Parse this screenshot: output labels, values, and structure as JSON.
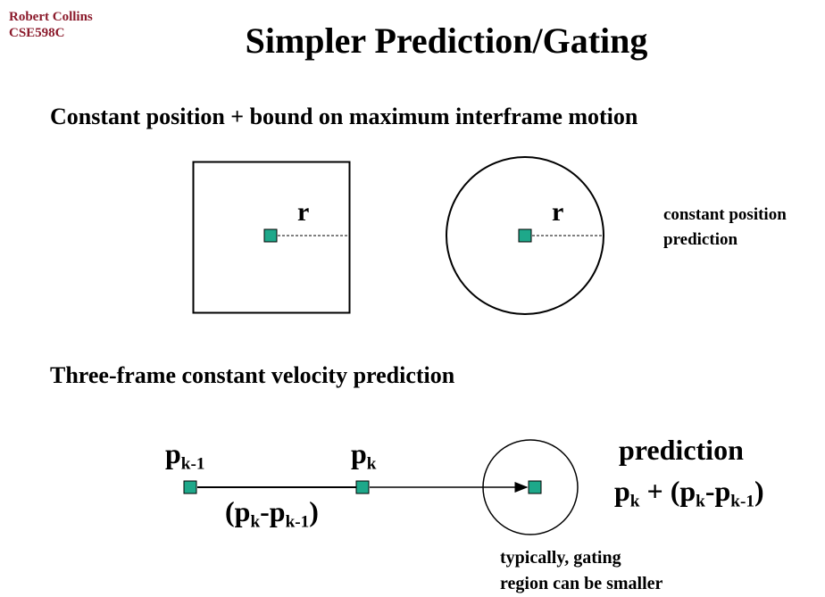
{
  "header": {
    "author_line1": "Robert Collins",
    "author_line2": "CSE598C",
    "title": "Simpler Prediction/Gating"
  },
  "section1": {
    "heading": "Constant position + bound on maximum interframe motion",
    "radius_label_square": "r",
    "radius_label_circle": "r",
    "side_note_line1": "constant position",
    "side_note_line2": "prediction"
  },
  "section2": {
    "heading": "Three-frame constant velocity prediction",
    "label_prev": {
      "base": "p",
      "sub": "k-1"
    },
    "label_curr": {
      "base": "p",
      "sub": "k"
    },
    "difference": {
      "open": "(",
      "a": "p",
      "a_sub": "k",
      "minus": "-",
      "b": "p",
      "b_sub": "k-1",
      "close": ")"
    },
    "prediction_title": "prediction",
    "prediction_formula": {
      "a": "p",
      "a_sub": "k",
      "plus": " + (",
      "b": "p",
      "b_sub": "k",
      "minus": "-",
      "c": "p",
      "c_sub": "k-1",
      "close": ")"
    },
    "note_line1": "typically, gating",
    "note_line2": "region can be smaller"
  },
  "colors": {
    "marker_fill": "#1ea88a",
    "author": "#8b1a2b"
  },
  "icons": {
    "point_marker": "teal-square"
  }
}
